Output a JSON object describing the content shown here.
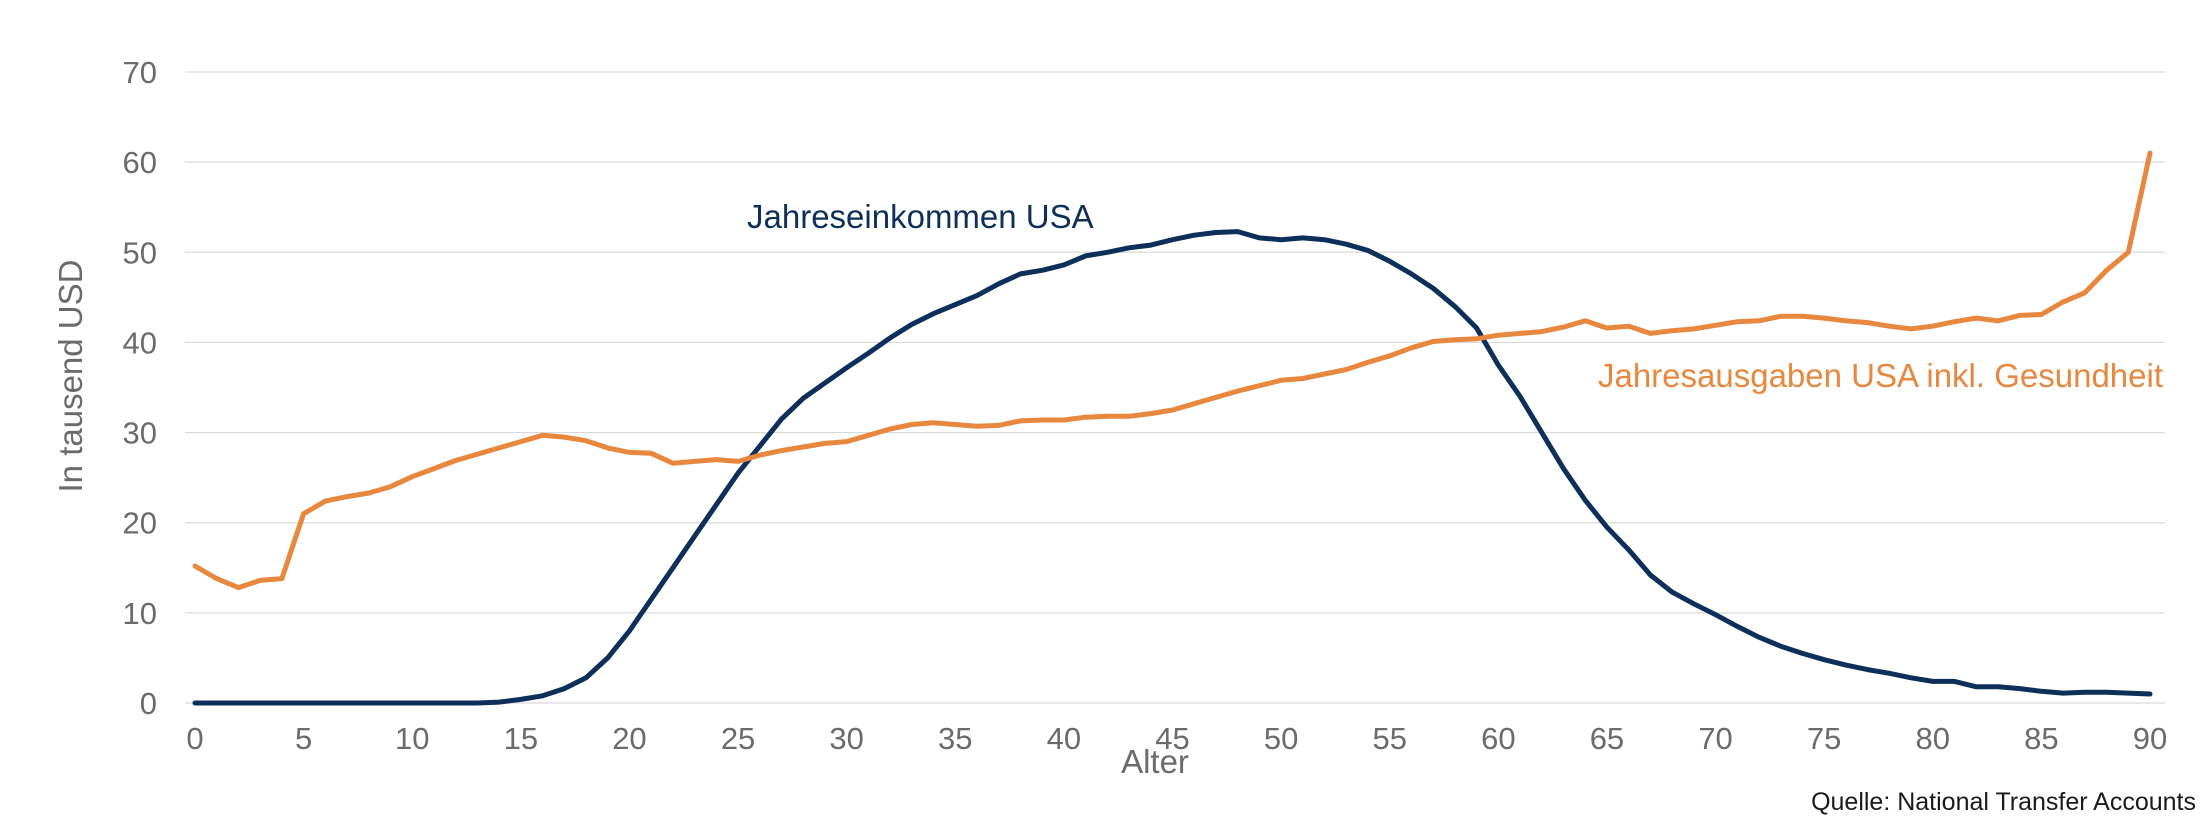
{
  "chart_data": {
    "type": "line",
    "xlabel": "Alter",
    "ylabel": "In tausend USD",
    "xlim": [
      0,
      90
    ],
    "ylim": [
      0,
      70
    ],
    "xticks": [
      0,
      5,
      10,
      15,
      20,
      25,
      30,
      35,
      40,
      45,
      50,
      55,
      60,
      65,
      70,
      75,
      80,
      85,
      90
    ],
    "yticks": [
      0,
      10,
      20,
      30,
      40,
      50,
      60,
      70
    ],
    "grid": "horizontal",
    "legend": "none",
    "source": "Quelle: National Transfer Accounts",
    "x": [
      0,
      1,
      2,
      3,
      4,
      5,
      6,
      7,
      8,
      9,
      10,
      11,
      12,
      13,
      14,
      15,
      16,
      17,
      18,
      19,
      20,
      21,
      22,
      23,
      24,
      25,
      26,
      27,
      28,
      29,
      30,
      31,
      32,
      33,
      34,
      35,
      36,
      37,
      38,
      39,
      40,
      41,
      42,
      43,
      44,
      45,
      46,
      47,
      48,
      49,
      50,
      51,
      52,
      53,
      54,
      55,
      56,
      57,
      58,
      59,
      60,
      61,
      62,
      63,
      64,
      65,
      66,
      67,
      68,
      69,
      70,
      71,
      72,
      73,
      74,
      75,
      76,
      77,
      78,
      79,
      80,
      81,
      82,
      83,
      84,
      85,
      86,
      87,
      88,
      89,
      90
    ],
    "series": [
      {
        "name": "Jahreseinkommen USA",
        "color": "#0e2f5a",
        "values": [
          0,
          0,
          0,
          0,
          0,
          0,
          0,
          0,
          0,
          0,
          0,
          0,
          0,
          0,
          0.1,
          0.4,
          0.8,
          1.6,
          2.8,
          5.0,
          8.0,
          11.5,
          15.0,
          18.5,
          22.0,
          25.5,
          28.5,
          31.5,
          33.8,
          35.5,
          37.2,
          38.8,
          40.5,
          42.0,
          43.2,
          44.2,
          45.2,
          46.5,
          47.6,
          48.0,
          48.6,
          49.6,
          50.0,
          50.5,
          50.8,
          51.4,
          51.9,
          52.2,
          52.3,
          51.6,
          51.4,
          51.6,
          51.4,
          50.9,
          50.2,
          49.0,
          47.6,
          46.0,
          44.0,
          41.6,
          37.5,
          34.0,
          30.0,
          26.0,
          22.5,
          19.5,
          17.0,
          14.2,
          12.3,
          11.0,
          9.8,
          8.5,
          7.3,
          6.3,
          5.5,
          4.8,
          4.2,
          3.7,
          3.3,
          2.8,
          2.4,
          2.4,
          1.8,
          1.8,
          1.6,
          1.3,
          1.1,
          1.2,
          1.2,
          1.1,
          1.0
        ]
      },
      {
        "name": "Jahresausgaben USA inkl. Gesundheit",
        "color": "#e8873e",
        "values": [
          15.2,
          13.8,
          12.8,
          13.6,
          13.8,
          21.0,
          22.4,
          22.9,
          23.3,
          24.0,
          25.1,
          26.0,
          26.9,
          27.6,
          28.3,
          29.0,
          29.7,
          29.5,
          29.1,
          28.3,
          27.8,
          27.7,
          26.6,
          26.8,
          27.0,
          26.8,
          27.5,
          28.0,
          28.4,
          28.8,
          29.0,
          29.7,
          30.4,
          30.9,
          31.1,
          30.9,
          30.7,
          30.8,
          31.3,
          31.4,
          31.4,
          31.7,
          31.8,
          31.8,
          32.1,
          32.5,
          33.2,
          33.9,
          34.6,
          35.2,
          35.8,
          36.0,
          36.5,
          37.0,
          37.8,
          38.5,
          39.4,
          40.1,
          40.3,
          40.4,
          40.8,
          41.0,
          41.2,
          41.7,
          42.4,
          41.6,
          41.8,
          41.0,
          41.3,
          41.5,
          41.9,
          42.3,
          42.4,
          42.9,
          42.9,
          42.7,
          42.4,
          42.2,
          41.8,
          41.5,
          41.8,
          42.3,
          42.7,
          42.4,
          43.0,
          43.1,
          44.5,
          45.5,
          48.0,
          50.0,
          61.0
        ]
      }
    ]
  },
  "labels": {
    "series_income": "Jahreseinkommen USA",
    "series_expenses": "Jahresausgaben USA inkl. Gesundheit",
    "xlabel": "Alter",
    "ylabel": "In tausend USD",
    "source": "Quelle: National Transfer Accounts"
  }
}
